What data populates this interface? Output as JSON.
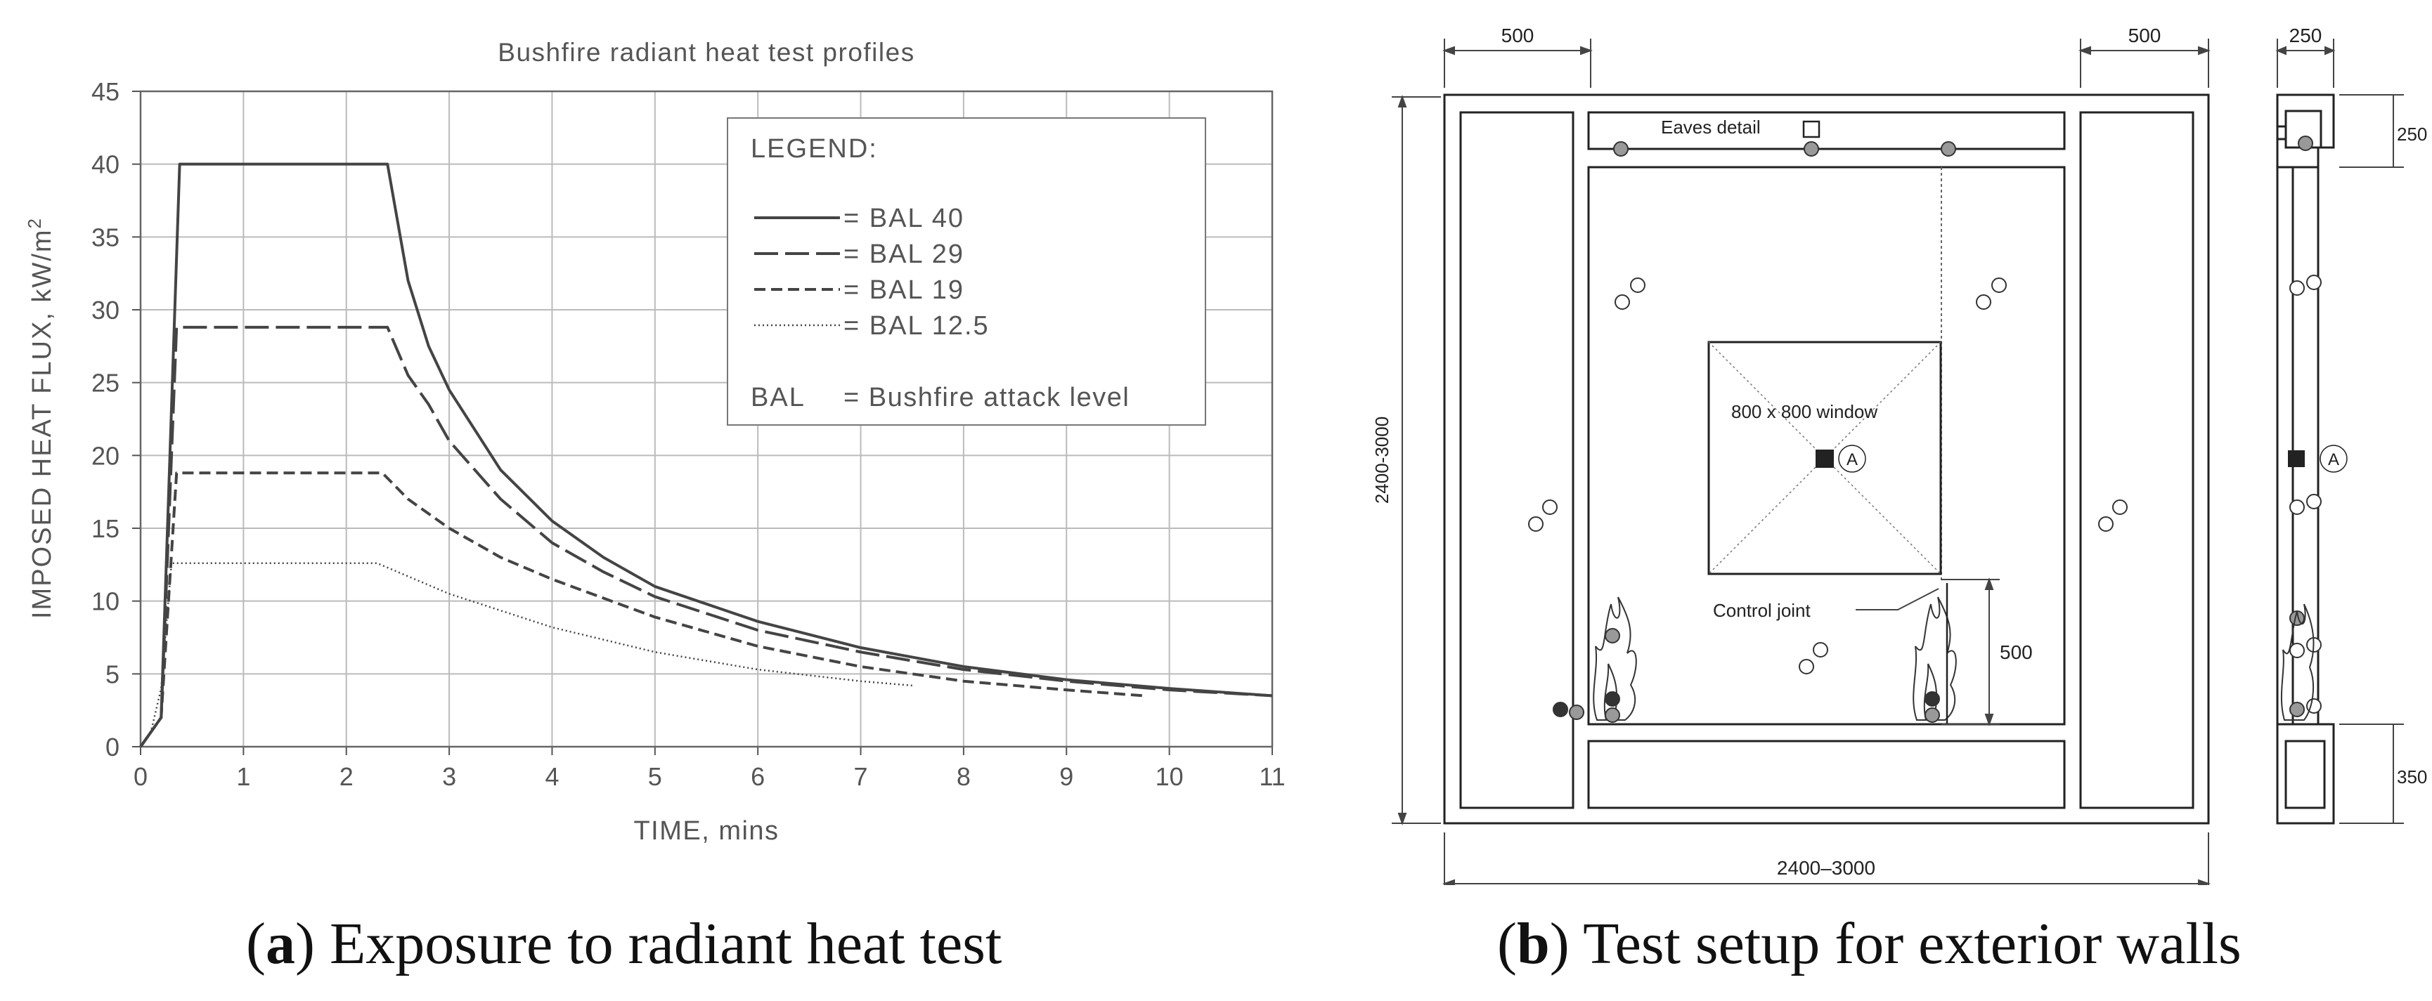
{
  "panel_a": {
    "chart_data": {
      "type": "line",
      "title": "Bushfire radiant heat test profiles",
      "xlabel": "TIME, mins",
      "ylabel": "IMPOSED HEAT FLUX, kW/m",
      "ylabel_sup": "2",
      "xlim": [
        0,
        11
      ],
      "ylim": [
        0,
        45
      ],
      "x_ticks": [
        "0",
        "1",
        "2",
        "3",
        "4",
        "5",
        "6",
        "7",
        "8",
        "9",
        "10",
        "11"
      ],
      "y_ticks": [
        "0",
        "5",
        "10",
        "15",
        "20",
        "25",
        "30",
        "35",
        "40",
        "45"
      ],
      "grid": true,
      "legend_position": "top-right",
      "legend_title": "LEGEND:",
      "legend_note_key": "BAL",
      "legend_note_value": "= Bushfire attack level",
      "series": [
        {
          "name": "= BAL 40",
          "style": "solid",
          "x": [
            0,
            0.2,
            0.38,
            2.4,
            2.6,
            2.8,
            3,
            3.5,
            4,
            4.5,
            5,
            6,
            7,
            8,
            9,
            10,
            11
          ],
          "y": [
            0,
            2,
            40,
            40,
            32,
            27.5,
            24.5,
            19,
            15.5,
            13,
            11,
            8.6,
            6.8,
            5.5,
            4.6,
            4,
            3.5
          ]
        },
        {
          "name": "= BAL 29",
          "style": "long-dash",
          "x": [
            0,
            0.2,
            0.35,
            2.4,
            2.6,
            2.8,
            3,
            3.5,
            4,
            4.5,
            5,
            6,
            7,
            8,
            9,
            10,
            11
          ],
          "y": [
            0,
            2,
            28.8,
            28.8,
            25.5,
            23.5,
            21,
            17,
            14,
            12,
            10.3,
            8,
            6.5,
            5.3,
            4.5,
            3.9,
            3.5
          ]
        },
        {
          "name": "= BAL 19",
          "style": "short-dash",
          "x": [
            0,
            0.2,
            0.35,
            2.35,
            2.6,
            3,
            3.5,
            4,
            5,
            6,
            7,
            8,
            9,
            9.75
          ],
          "y": [
            0,
            2,
            18.8,
            18.8,
            17,
            15,
            13,
            11.5,
            8.9,
            6.9,
            5.5,
            4.5,
            3.9,
            3.5
          ]
        },
        {
          "name": "= BAL 12.5",
          "style": "dotted",
          "x": [
            0,
            0.1,
            0.2,
            0.3,
            2.3,
            3,
            4,
            5,
            6,
            7,
            7.5
          ],
          "y": [
            0,
            1,
            4,
            12.6,
            12.6,
            10.5,
            8.2,
            6.5,
            5.3,
            4.5,
            4.2
          ]
        }
      ]
    },
    "caption_label": "a",
    "caption_text": "Exposure to radiant heat test"
  },
  "panel_b": {
    "dim_500_left": "500",
    "dim_500_right": "500",
    "dim_250_top": "250",
    "dim_250_side": "250",
    "dim_350_side": "350",
    "dim_height": "2400-3000",
    "dim_width": "2400–3000",
    "dim_500_joint": "500",
    "eaves_label": "Eaves detail",
    "window_label": "800 x 800 window",
    "marker_a": "A",
    "marker_a_side": "A",
    "control_joint_label": "Control joint",
    "caption_label": "b",
    "caption_text": "Test setup for exterior walls"
  }
}
